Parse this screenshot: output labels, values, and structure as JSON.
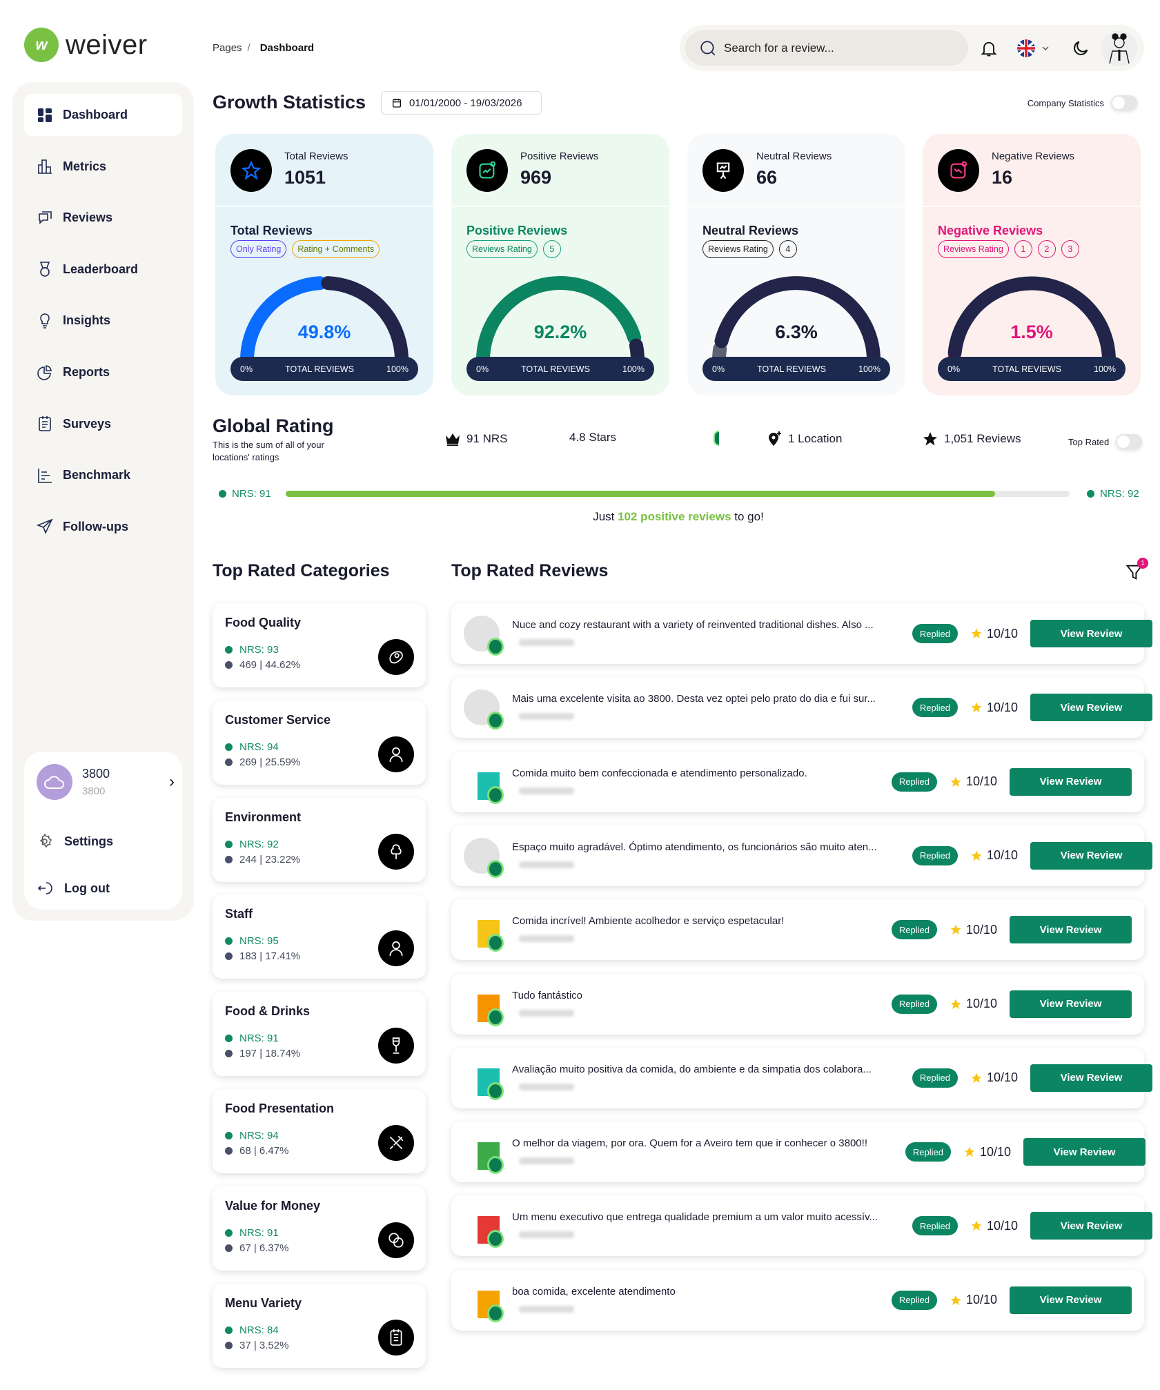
{
  "app": {
    "logo_text": "weiver",
    "logo_color": "#7ac143"
  },
  "breadcrumb": {
    "parent": "Pages",
    "separator": "/",
    "current": "Dashboard"
  },
  "header": {
    "search_placeholder": "Search for a review...",
    "icons": [
      "bell-icon",
      "uk-flag-icon",
      "chevron-down-icon",
      "moon-icon",
      "user-avatar"
    ]
  },
  "sidebar": {
    "items": [
      {
        "label": "Dashboard",
        "icon": "dashboard",
        "active": true
      },
      {
        "label": "Metrics",
        "icon": "metrics"
      },
      {
        "label": "Reviews",
        "icon": "reviews"
      },
      {
        "label": "Leaderboard",
        "icon": "leaderboard"
      },
      {
        "label": "Insights",
        "icon": "insights"
      },
      {
        "label": "Reports",
        "icon": "reports"
      },
      {
        "label": "Surveys",
        "icon": "surveys"
      },
      {
        "label": "Benchmark",
        "icon": "benchmark"
      },
      {
        "label": "Follow-ups",
        "icon": "followups"
      }
    ],
    "location": {
      "name": "3800",
      "sub": "3800"
    },
    "settings": "Settings",
    "logout": "Log out"
  },
  "growth": {
    "title": "Growth Statistics",
    "date_range": "01/01/2000 - 19/03/2026",
    "company_toggle_label": "Company Statistics",
    "company_toggle_on": false,
    "cards": [
      {
        "label": "Total Reviews",
        "value": "1051",
        "section_title": "Total Reviews",
        "chips": [
          {
            "text": "Only Rating",
            "color": "#5b3df5"
          },
          {
            "text": "Rating + Comments",
            "color": "#f5a300"
          }
        ],
        "percent_text": "49.8%",
        "percent": 49.8,
        "color": "#0a6cff",
        "bg": "#e6f4fa",
        "title_color": "#1b1f3b",
        "icon_color": "#0a6cff",
        "bar_left": "0%",
        "bar_mid": "TOTAL REVIEWS",
        "bar_right": "100%"
      },
      {
        "label": "Positive Reviews",
        "value": "969",
        "section_title": "Positive Reviews",
        "chips": [
          {
            "text": "Reviews Rating",
            "color": "#16a085"
          },
          {
            "text": "5",
            "color": "#16a085"
          }
        ],
        "percent_text": "92.2%",
        "percent": 92.2,
        "color": "#0c8562",
        "bg": "#ecf9ef",
        "title_color": "#0c8562",
        "icon_color": "#2ed6a0",
        "bar_left": "0%",
        "bar_mid": "TOTAL REVIEWS",
        "bar_right": "100%"
      },
      {
        "label": "Neutral Reviews",
        "value": "66",
        "section_title": "Neutral Reviews",
        "chips": [
          {
            "text": "Reviews Rating",
            "color": "#222"
          },
          {
            "text": "4",
            "color": "#222"
          }
        ],
        "percent_text": "6.3%",
        "percent": 6.3,
        "color": "#5d6273",
        "bg": "#f8f9fb",
        "title_color": "#1b1b2f",
        "icon_color": "#ffffff",
        "bar_left": "0%",
        "bar_mid": "TOTAL REVIEWS",
        "bar_right": "100%"
      },
      {
        "label": "Negative Reviews",
        "value": "16",
        "section_title": "Negative Reviews",
        "chips": [
          {
            "text": "Reviews Rating",
            "color": "#e0157a"
          },
          {
            "text": "1",
            "color": "#e0157a"
          },
          {
            "text": "2",
            "color": "#e0157a"
          },
          {
            "text": "3",
            "color": "#e0157a"
          }
        ],
        "percent_text": "1.5%",
        "percent": 1.5,
        "color": "#e0157a",
        "bg": "#fdefed",
        "title_color": "#e0157a",
        "icon_color": "#ff3d8b",
        "bar_left": "0%",
        "bar_mid": "TOTAL REVIEWS",
        "bar_right": "100%"
      }
    ]
  },
  "global_rating": {
    "title": "Global Rating",
    "subtitle": "This is the sum of all of your locations' ratings",
    "nrs": "91 NRS",
    "stars": "4.8 Stars",
    "locations": "1 Location",
    "reviews": "1,051 Reviews",
    "top_rated_label": "Top Rated",
    "top_rated_on": false,
    "progress": {
      "from_label": "NRS: 91",
      "to_label": "NRS: 92",
      "fraction": 0.905,
      "color": "#7ac143"
    },
    "to_go": {
      "prefix": "Just ",
      "highlight": "102 positive reviews",
      "suffix": " to go!"
    }
  },
  "categories": {
    "title": "Top Rated Categories",
    "items": [
      {
        "name": "Food Quality",
        "nrs": "NRS: 93",
        "count": "469 | 44.62%",
        "icon": "steak-icon"
      },
      {
        "name": "Customer Service",
        "nrs": "NRS: 94",
        "count": "269 | 25.59%",
        "icon": "person-icon"
      },
      {
        "name": "Environment",
        "nrs": "NRS: 92",
        "count": "244 | 23.22%",
        "icon": "tree-icon"
      },
      {
        "name": "Staff",
        "nrs": "NRS: 95",
        "count": "183 | 17.41%",
        "icon": "person-icon"
      },
      {
        "name": "Food & Drinks",
        "nrs": "NRS: 91",
        "count": "197 | 18.74%",
        "icon": "wine-glass-icon"
      },
      {
        "name": "Food Presentation",
        "nrs": "NRS: 94",
        "count": "68 | 6.47%",
        "icon": "utensils-icon"
      },
      {
        "name": "Value for Money",
        "nrs": "NRS: 91",
        "count": "67 | 6.37%",
        "icon": "coins-icon"
      },
      {
        "name": "Menu Variety",
        "nrs": "NRS: 84",
        "count": "37 | 3.52%",
        "icon": "menu-icon"
      }
    ]
  },
  "reviews": {
    "title": "Top Rated Reviews",
    "filter_badge": "1",
    "items": [
      {
        "text": "Nuce and cozy restaurant with a variety of reinvented traditional dishes. Also ...",
        "status": "Replied",
        "rating": "10/10",
        "button": "View Review",
        "avatar_color": ""
      },
      {
        "text": "Mais uma excelente visita ao 3800. Desta vez optei pelo prato do dia e fui sur...",
        "status": "Replied",
        "rating": "10/10",
        "button": "View Review",
        "avatar_color": ""
      },
      {
        "text": "Comida muito bem confeccionada e atendimento personalizado.",
        "status": "Replied",
        "rating": "10/10",
        "button": "View Review",
        "avatar_color": "#1bbfb0"
      },
      {
        "text": "Espaço muito agradável. Óptimo atendimento, os funcionários são muito aten...",
        "status": "Replied",
        "rating": "10/10",
        "button": "View Review",
        "avatar_color": ""
      },
      {
        "text": "Comida incrível! Ambiente acolhedor e serviço espetacular!",
        "status": "Replied",
        "rating": "10/10",
        "button": "View Review",
        "avatar_color": "#f5c518"
      },
      {
        "text": "Tudo fantástico",
        "status": "Replied",
        "rating": "10/10",
        "button": "View Review",
        "avatar_color": "#f59300"
      },
      {
        "text": "Avaliação muito positiva da comida, do ambiente e da simpatia dos colabora...",
        "status": "Replied",
        "rating": "10/10",
        "button": "View Review",
        "avatar_color": "#1bbfb0"
      },
      {
        "text": "O melhor da viagem, por ora. Quem for a Aveiro tem que ir conhecer o 3800!!",
        "status": "Replied",
        "rating": "10/10",
        "button": "View Review",
        "avatar_color": "#3cab4a",
        "wide": true
      },
      {
        "text": "Um menu executivo que entrega qualidade premium a um valor muito acessív...",
        "status": "Replied",
        "rating": "10/10",
        "button": "View Review",
        "avatar_color": "#e53935"
      },
      {
        "text": "boa comida, excelente atendimento",
        "status": "Replied",
        "rating": "10/10",
        "button": "View Review",
        "avatar_color": "#f5a300"
      }
    ]
  },
  "colors": {
    "primary_green": "#0c8562",
    "brand_green": "#7ac143",
    "navy": "#1c2a4f",
    "sidebar_bg": "#f7f5f1"
  }
}
